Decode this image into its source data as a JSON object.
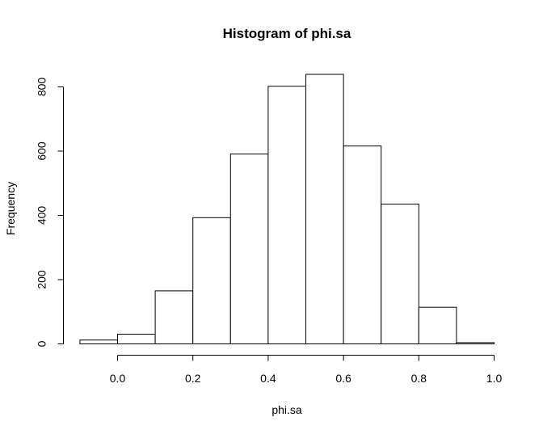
{
  "chart_data": {
    "type": "bar",
    "title": "Histogram of phi.sa",
    "xlabel": "phi.sa",
    "ylabel": "Frequency",
    "bins": [
      {
        "x0": -0.1,
        "x1": 0.0,
        "count": 12
      },
      {
        "x0": 0.0,
        "x1": 0.1,
        "count": 30
      },
      {
        "x0": 0.1,
        "x1": 0.2,
        "count": 165
      },
      {
        "x0": 0.2,
        "x1": 0.3,
        "count": 393
      },
      {
        "x0": 0.3,
        "x1": 0.4,
        "count": 591
      },
      {
        "x0": 0.4,
        "x1": 0.5,
        "count": 802
      },
      {
        "x0": 0.5,
        "x1": 0.6,
        "count": 839
      },
      {
        "x0": 0.6,
        "x1": 0.7,
        "count": 616
      },
      {
        "x0": 0.7,
        "x1": 0.8,
        "count": 435
      },
      {
        "x0": 0.8,
        "x1": 0.9,
        "count": 114
      },
      {
        "x0": 0.9,
        "x1": 1.0,
        "count": 4
      }
    ],
    "xlim": [
      -0.1,
      1.0
    ],
    "ylim": [
      0,
      839
    ],
    "x_ticks": [
      "0.0",
      "0.2",
      "0.4",
      "0.6",
      "0.8",
      "1.0"
    ],
    "y_ticks": [
      "0",
      "200",
      "400",
      "600",
      "800"
    ],
    "grid": false,
    "colors": {
      "bar_fill": "#ffffff",
      "bar_stroke": "#000000"
    }
  }
}
